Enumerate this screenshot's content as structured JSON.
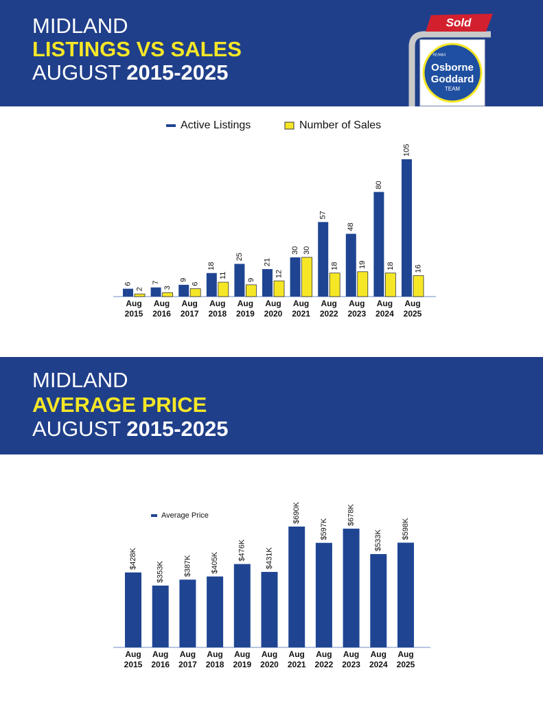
{
  "sections": [
    {
      "lines": [
        "MIDLAND",
        "LISTINGS VS SALES"
      ],
      "period": "AUGUST",
      "years": "2015-2025"
    },
    {
      "lines": [
        "MIDLAND",
        "AVERAGE PRICE"
      ],
      "period": "AUGUST",
      "years": "2015-2025"
    }
  ],
  "logo": {
    "sold": "Sold",
    "brand": "RE/MAX",
    "name": [
      "Osborne",
      "Goddard"
    ],
    "team": "TEAM"
  },
  "chart_data": [
    {
      "type": "bar",
      "categories": [
        [
          "Aug",
          "2015"
        ],
        [
          "Aug",
          "2016"
        ],
        [
          "Aug",
          "2017"
        ],
        [
          "Aug",
          "2018"
        ],
        [
          "Aug",
          "2019"
        ],
        [
          "Aug",
          "2020"
        ],
        [
          "Aug",
          "2021"
        ],
        [
          "Aug",
          "2022"
        ],
        [
          "Aug",
          "2023"
        ],
        [
          "Aug",
          "2024"
        ],
        [
          "Aug",
          "2025"
        ]
      ],
      "series": [
        {
          "name": "Active Listings",
          "color": "#1f4592",
          "values": [
            6,
            7,
            9,
            18,
            25,
            21,
            30,
            57,
            48,
            80,
            105
          ]
        },
        {
          "name": "Number of Sales",
          "color": "#f6e726",
          "values": [
            2,
            3,
            6,
            11,
            9,
            12,
            30,
            18,
            19,
            18,
            16
          ]
        }
      ]
    },
    {
      "type": "bar",
      "categories": [
        [
          "Aug",
          "2015"
        ],
        [
          "Aug",
          "2016"
        ],
        [
          "Aug",
          "2017"
        ],
        [
          "Aug",
          "2018"
        ],
        [
          "Aug",
          "2019"
        ],
        [
          "Aug",
          "2020"
        ],
        [
          "Aug",
          "2021"
        ],
        [
          "Aug",
          "2022"
        ],
        [
          "Aug",
          "2023"
        ],
        [
          "Aug",
          "2024"
        ],
        [
          "Aug",
          "2025"
        ]
      ],
      "series": [
        {
          "name": "Average Price",
          "color": "#1f4592",
          "values": [
            428000,
            353000,
            387000,
            405000,
            476000,
            431000,
            690000,
            597000,
            678000,
            533000,
            598000
          ],
          "value_labels": [
            "$428K",
            "$353K",
            "$387K",
            "$405K",
            "$476K",
            "$431K",
            "$690K",
            "$597K",
            "$678K",
            "$533K",
            "$598K"
          ]
        }
      ]
    }
  ]
}
